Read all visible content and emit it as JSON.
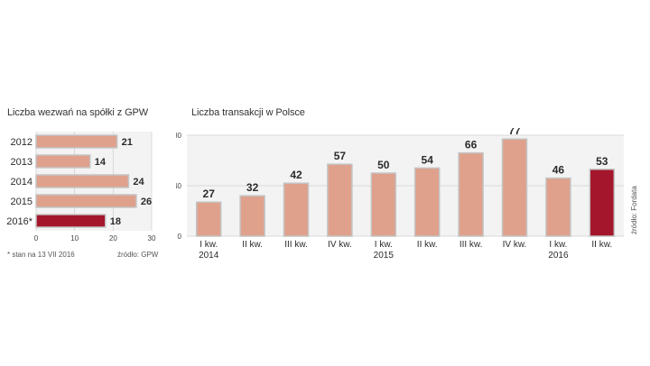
{
  "colors": {
    "bar": "#dfa18c",
    "bar_highlight": "#a3162b",
    "bar_stroke": "#c4c4c4",
    "panel_bg": "#f3f3f3",
    "grid": "#cfcfcf",
    "text": "#2b2b2b"
  },
  "left": {
    "title": "Liczba wezwań na spółki z GPW",
    "footnote": "* stan na 13 VII 2016",
    "source": "źródło: GPW"
  },
  "right": {
    "title": "Liczba transakcji w Polsce",
    "source": "źródło: Fordata"
  },
  "chart_data": [
    {
      "type": "bar",
      "orientation": "horizontal",
      "title": "Liczba wezwań na spółki z GPW",
      "categories": [
        "2012",
        "2013",
        "2014",
        "2015",
        "2016*"
      ],
      "values": [
        21,
        14,
        24,
        26,
        18
      ],
      "highlight_index": 4,
      "xlim": [
        0,
        30
      ],
      "xticks": [
        0,
        10,
        20,
        30
      ],
      "grid": true
    },
    {
      "type": "bar",
      "orientation": "vertical",
      "title": "Liczba transakcji w Polsce",
      "categories": [
        {
          "q": "I kw.",
          "year": "2014"
        },
        {
          "q": "II kw.",
          "year": ""
        },
        {
          "q": "III kw.",
          "year": ""
        },
        {
          "q": "IV kw.",
          "year": ""
        },
        {
          "q": "I kw.",
          "year": "2015"
        },
        {
          "q": "II kw.",
          "year": ""
        },
        {
          "q": "III kw.",
          "year": ""
        },
        {
          "q": "IV kw.",
          "year": ""
        },
        {
          "q": "I kw.",
          "year": "2016"
        },
        {
          "q": "II kw.",
          "year": ""
        }
      ],
      "values": [
        27,
        32,
        42,
        57,
        50,
        54,
        66,
        77,
        46,
        53
      ],
      "highlight_index": 9,
      "ylim": [
        0,
        80
      ],
      "yticks": [
        0,
        40,
        80
      ],
      "grid": true
    }
  ]
}
